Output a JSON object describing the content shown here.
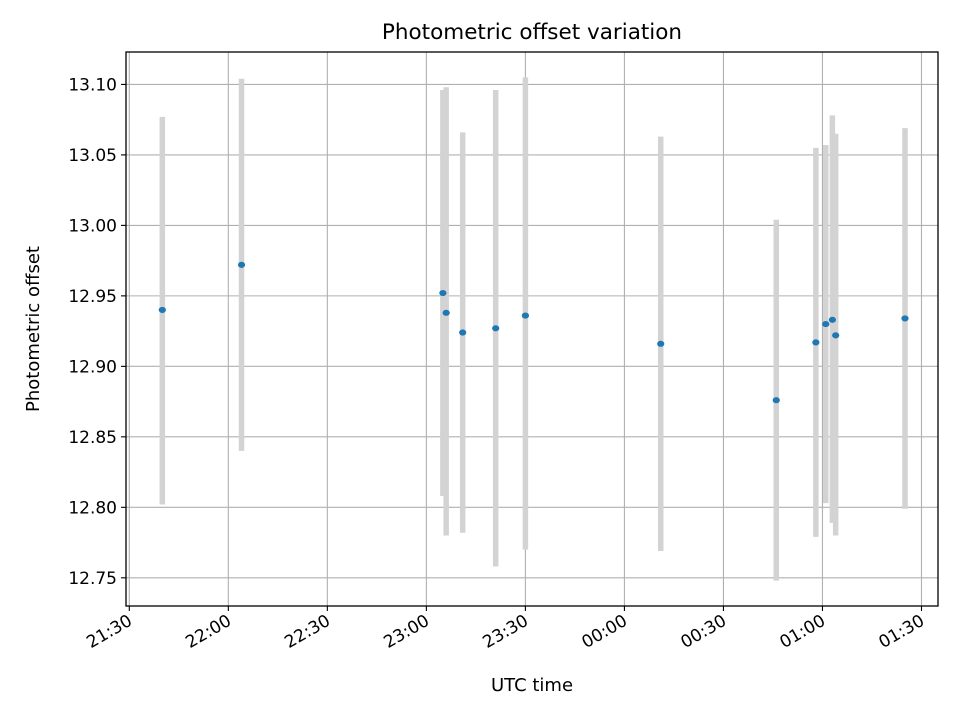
{
  "chart_data": {
    "type": "scatter",
    "title": "Photometric offset variation",
    "xlabel": "UTC time",
    "ylabel": "Photometric offset",
    "x_ticks": [
      "21:30",
      "22:00",
      "22:30",
      "23:00",
      "23:30",
      "00:00",
      "00:30",
      "01:00",
      "01:30"
    ],
    "y_ticks": [
      "12.75",
      "12.80",
      "12.85",
      "12.90",
      "12.95",
      "13.00",
      "13.05",
      "13.10"
    ],
    "xlim": [
      "21:29",
      "01:35"
    ],
    "ylim": [
      12.73,
      13.123
    ],
    "grid": true,
    "colors": {
      "marker": "#1f77b4",
      "errorbar": "#d3d3d3",
      "grid": "#b0b0b0"
    },
    "series": [
      {
        "points": [
          {
            "x": "21:40",
            "y": 12.94,
            "ylow": 12.802,
            "yhigh": 13.077
          },
          {
            "x": "22:04",
            "y": 12.972,
            "ylow": 12.84,
            "yhigh": 13.104
          },
          {
            "x": "23:05",
            "y": 12.952,
            "ylow": 12.808,
            "yhigh": 13.096
          },
          {
            "x": "23:06",
            "y": 12.938,
            "ylow": 12.78,
            "yhigh": 13.098
          },
          {
            "x": "23:11",
            "y": 12.924,
            "ylow": 12.782,
            "yhigh": 13.066
          },
          {
            "x": "23:21",
            "y": 12.927,
            "ylow": 12.758,
            "yhigh": 13.096
          },
          {
            "x": "23:30",
            "y": 12.936,
            "ylow": 12.77,
            "yhigh": 13.105
          },
          {
            "x": "00:11",
            "y": 12.916,
            "ylow": 12.769,
            "yhigh": 13.063
          },
          {
            "x": "00:46",
            "y": 12.876,
            "ylow": 12.748,
            "yhigh": 13.004
          },
          {
            "x": "00:58",
            "y": 12.917,
            "ylow": 12.779,
            "yhigh": 13.055
          },
          {
            "x": "01:01",
            "y": 12.93,
            "ylow": 12.803,
            "yhigh": 13.057
          },
          {
            "x": "01:03",
            "y": 12.933,
            "ylow": 12.789,
            "yhigh": 13.078
          },
          {
            "x": "01:04",
            "y": 12.922,
            "ylow": 12.78,
            "yhigh": 13.065
          },
          {
            "x": "01:25",
            "y": 12.934,
            "ylow": 12.799,
            "yhigh": 13.069
          }
        ]
      }
    ]
  }
}
